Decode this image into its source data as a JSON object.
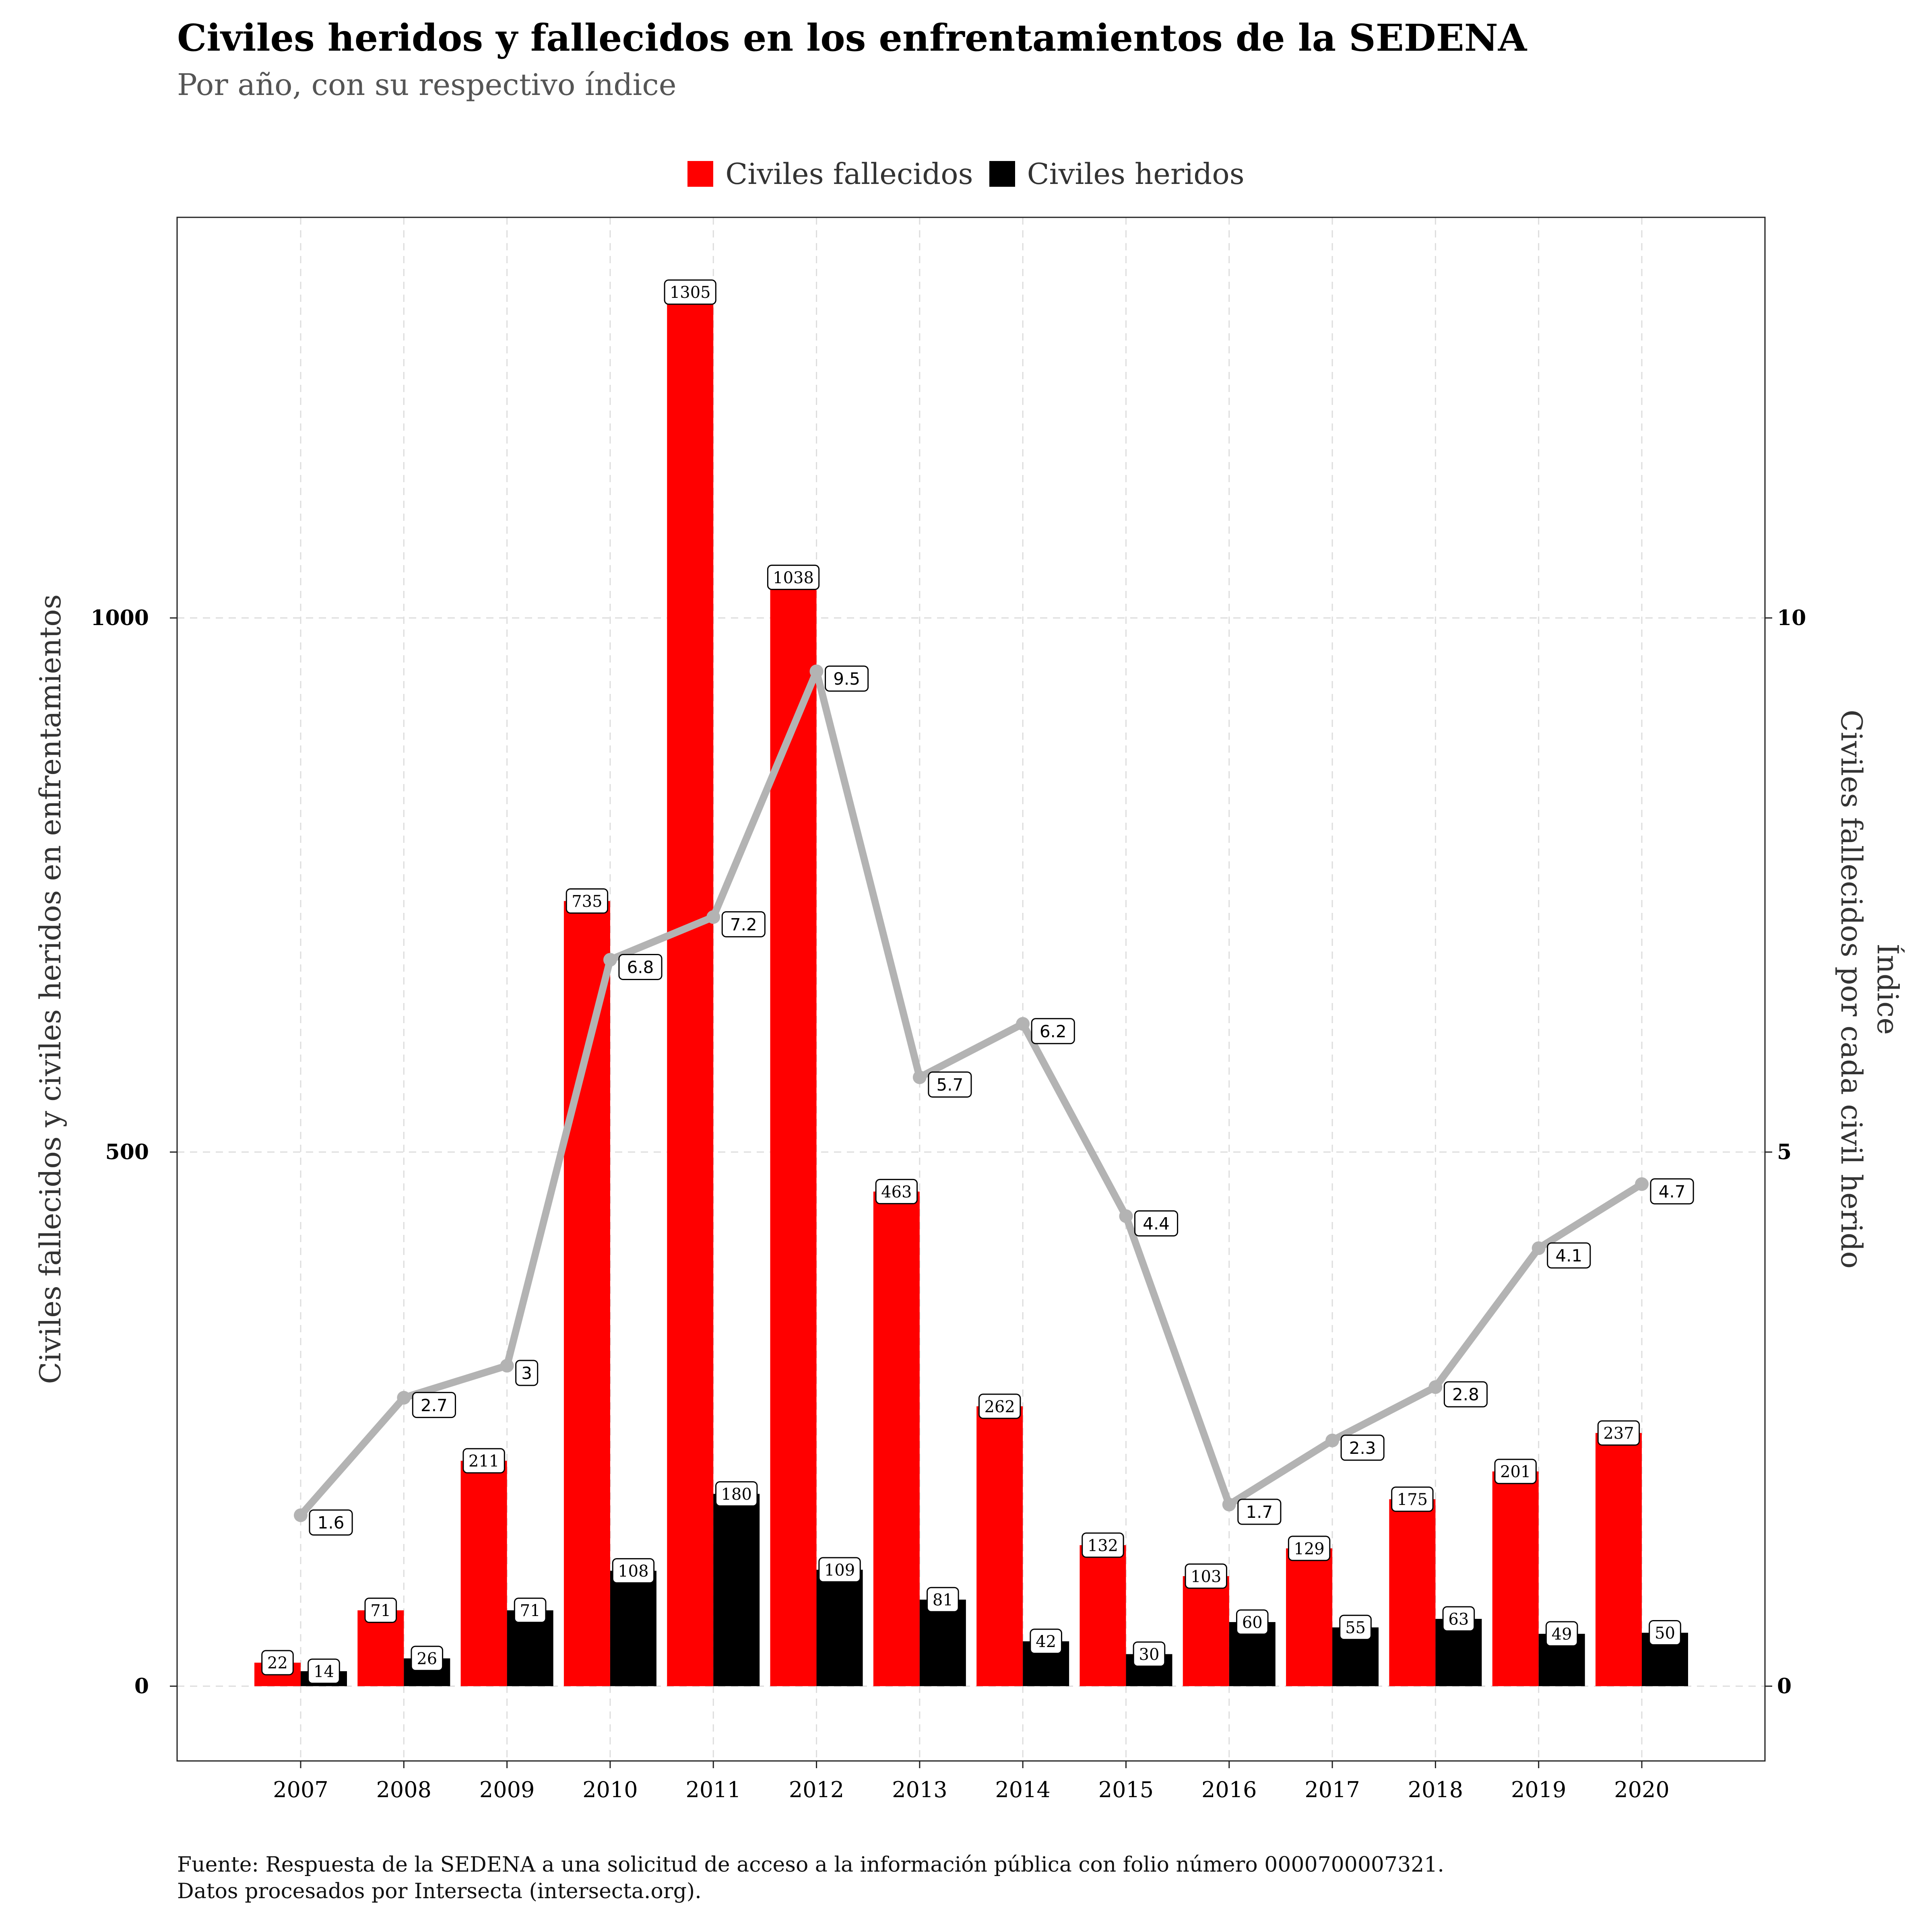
{
  "title": "Civiles heridos y fallecidos en los enfrentamientos de la SEDENA",
  "subtitle": "Por año, con su respectivo índice",
  "colors": {
    "fallecidos": "#ff0000",
    "heridos": "#000000",
    "indice": "#b3b3b3"
  },
  "chart_data": {
    "type": "bar",
    "categories": [
      "2007",
      "2008",
      "2009",
      "2010",
      "2011",
      "2012",
      "2013",
      "2014",
      "2015",
      "2016",
      "2017",
      "2018",
      "2019",
      "2020"
    ],
    "series": [
      {
        "name": "Civiles fallecidos",
        "values": [
          22,
          71,
          211,
          735,
          1305,
          1038,
          463,
          262,
          132,
          103,
          129,
          175,
          201,
          237
        ]
      },
      {
        "name": "Civiles heridos",
        "values": [
          14,
          26,
          71,
          108,
          180,
          109,
          81,
          42,
          30,
          60,
          55,
          63,
          49,
          50
        ]
      }
    ],
    "line_series": {
      "values": [
        1.6,
        2.7,
        3,
        6.8,
        7.2,
        9.5,
        5.7,
        6.2,
        4.4,
        1.7,
        2.3,
        2.8,
        4.1,
        4.7
      ]
    },
    "ylabel": "Civiles fallecidos y civiles heridos en enfrentamientos",
    "y2label_line1": "Índice",
    "y2label_line2": "Civiles fallecidos por cada civil herido",
    "ylim": [
      -70,
      1375
    ],
    "y2lim": [
      -0.7,
      13.75
    ],
    "yticks": [
      0,
      500,
      1000
    ],
    "y2ticks": [
      0,
      5,
      10
    ],
    "grid": true,
    "legend_position": "top"
  },
  "caption": {
    "line1": "Fuente: Respuesta de la SEDENA a una solicitud de acceso a la información pública con folio número 0000700007321.",
    "line2": "Datos procesados por Intersecta (intersecta.org)."
  }
}
